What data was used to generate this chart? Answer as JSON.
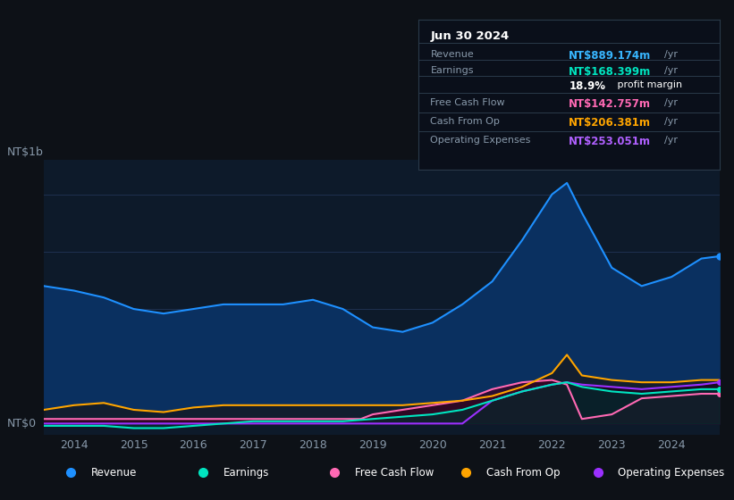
{
  "bg_color": "#0d1117",
  "plot_bg_color": "#0d1a2a",
  "grid_color": "#1e3050",
  "title_box": {
    "date": "Jun 30 2024",
    "rows": [
      {
        "label": "Revenue",
        "value": "NT$889.174m",
        "unit": "/yr",
        "color": "#38b6ff"
      },
      {
        "label": "Earnings",
        "value": "NT$168.399m",
        "unit": "/yr",
        "color": "#00e5c0"
      },
      {
        "label": "",
        "value": "18.9%",
        "unit": " profit margin",
        "color": "#ffffff"
      },
      {
        "label": "Free Cash Flow",
        "value": "NT$142.757m",
        "unit": "/yr",
        "color": "#ff69b4"
      },
      {
        "label": "Cash From Op",
        "value": "NT$206.381m",
        "unit": "/yr",
        "color": "#ffa500"
      },
      {
        "label": "Operating Expenses",
        "value": "NT$253.051m",
        "unit": "/yr",
        "color": "#b060ff"
      }
    ]
  },
  "ylabel": "NT$1b",
  "y0label": "NT$0",
  "xlim": [
    2013.5,
    2024.8
  ],
  "ylim": [
    -0.05,
    1.15
  ],
  "xticks": [
    2014,
    2015,
    2016,
    2017,
    2018,
    2019,
    2020,
    2021,
    2022,
    2023,
    2024
  ],
  "ytick_positions": [
    0.0,
    0.25,
    0.5,
    0.75,
    1.0
  ],
  "series": {
    "revenue": {
      "color": "#1e90ff",
      "fill_color": "#0a3060",
      "x": [
        2013.5,
        2014.0,
        2014.5,
        2015.0,
        2015.5,
        2016.0,
        2016.5,
        2017.0,
        2017.5,
        2018.0,
        2018.5,
        2019.0,
        2019.5,
        2020.0,
        2020.5,
        2021.0,
        2021.5,
        2022.0,
        2022.25,
        2022.5,
        2023.0,
        2023.5,
        2024.0,
        2024.5,
        2024.8
      ],
      "y": [
        0.6,
        0.58,
        0.55,
        0.5,
        0.48,
        0.5,
        0.52,
        0.52,
        0.52,
        0.54,
        0.5,
        0.42,
        0.4,
        0.44,
        0.52,
        0.62,
        0.8,
        1.0,
        1.05,
        0.92,
        0.68,
        0.6,
        0.64,
        0.72,
        0.73
      ]
    },
    "earnings": {
      "color": "#00e5c0",
      "fill_color": "#004040",
      "x": [
        2013.5,
        2014.0,
        2014.5,
        2015.0,
        2015.5,
        2016.0,
        2016.5,
        2017.0,
        2017.5,
        2018.0,
        2018.5,
        2019.0,
        2019.5,
        2020.0,
        2020.5,
        2021.0,
        2021.5,
        2022.0,
        2022.25,
        2022.5,
        2023.0,
        2023.5,
        2024.0,
        2024.5,
        2024.8
      ],
      "y": [
        -0.01,
        -0.01,
        -0.01,
        -0.02,
        -0.02,
        -0.01,
        0.0,
        0.01,
        0.01,
        0.01,
        0.01,
        0.02,
        0.03,
        0.04,
        0.06,
        0.1,
        0.14,
        0.17,
        0.18,
        0.16,
        0.14,
        0.13,
        0.14,
        0.15,
        0.15
      ]
    },
    "free_cash_flow": {
      "color": "#ff69b4",
      "fill_color": "#3a0020",
      "x": [
        2013.5,
        2014.0,
        2014.5,
        2015.0,
        2015.5,
        2016.0,
        2016.5,
        2017.0,
        2017.5,
        2018.0,
        2018.5,
        2018.8,
        2019.0,
        2019.5,
        2020.0,
        2020.5,
        2021.0,
        2021.5,
        2022.0,
        2022.25,
        2022.5,
        2023.0,
        2023.5,
        2024.0,
        2024.5,
        2024.8
      ],
      "y": [
        0.02,
        0.02,
        0.02,
        0.02,
        0.02,
        0.02,
        0.02,
        0.02,
        0.02,
        0.02,
        0.02,
        0.02,
        0.04,
        0.06,
        0.08,
        0.1,
        0.15,
        0.18,
        0.19,
        0.17,
        0.02,
        0.04,
        0.11,
        0.12,
        0.13,
        0.13
      ]
    },
    "cash_from_op": {
      "color": "#ffa500",
      "fill_color": "#2a1a00",
      "x": [
        2013.5,
        2014.0,
        2014.5,
        2015.0,
        2015.5,
        2016.0,
        2016.5,
        2017.0,
        2017.5,
        2018.0,
        2018.5,
        2019.0,
        2019.5,
        2020.0,
        2020.5,
        2021.0,
        2021.5,
        2022.0,
        2022.25,
        2022.5,
        2023.0,
        2023.5,
        2024.0,
        2024.5,
        2024.8
      ],
      "y": [
        0.06,
        0.08,
        0.09,
        0.06,
        0.05,
        0.07,
        0.08,
        0.08,
        0.08,
        0.08,
        0.08,
        0.08,
        0.08,
        0.09,
        0.1,
        0.12,
        0.16,
        0.22,
        0.3,
        0.21,
        0.19,
        0.18,
        0.18,
        0.19,
        0.19
      ]
    },
    "operating_expenses": {
      "color": "#9b30ff",
      "fill_color": "#1a0040",
      "x": [
        2013.5,
        2014.0,
        2014.5,
        2015.0,
        2015.5,
        2016.0,
        2016.5,
        2017.0,
        2017.5,
        2018.0,
        2018.5,
        2019.0,
        2019.5,
        2020.0,
        2020.5,
        2021.0,
        2021.5,
        2022.0,
        2022.25,
        2022.5,
        2023.0,
        2023.5,
        2024.0,
        2024.5,
        2024.8
      ],
      "y": [
        0.0,
        0.0,
        0.0,
        0.0,
        0.0,
        0.0,
        0.0,
        0.0,
        0.0,
        0.0,
        0.0,
        0.0,
        0.0,
        0.0,
        0.0,
        0.1,
        0.14,
        0.17,
        0.18,
        0.17,
        0.16,
        0.15,
        0.16,
        0.17,
        0.18
      ]
    }
  },
  "legend_items": [
    {
      "label": "Revenue",
      "color": "#1e90ff"
    },
    {
      "label": "Earnings",
      "color": "#00e5c0"
    },
    {
      "label": "Free Cash Flow",
      "color": "#ff69b4"
    },
    {
      "label": "Cash From Op",
      "color": "#ffa500"
    },
    {
      "label": "Operating Expenses",
      "color": "#9b30ff"
    }
  ]
}
